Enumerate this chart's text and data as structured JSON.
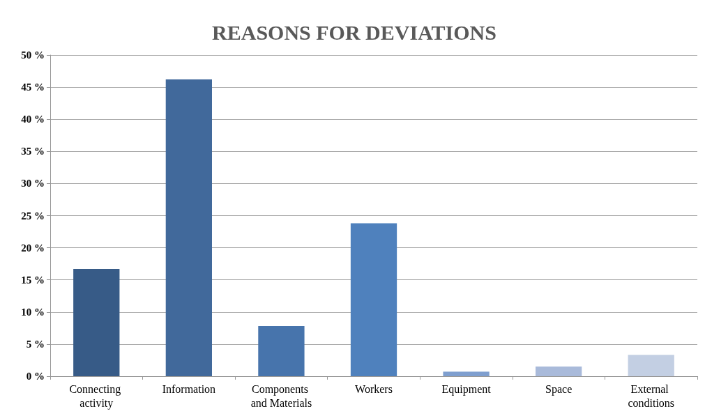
{
  "chart_data": {
    "type": "bar",
    "title": "REASONS FOR DEVIATIONS",
    "categories": [
      "Connecting activity",
      "Information",
      "Components and Materials",
      "Workers",
      "Equipment",
      "Space",
      "External conditions"
    ],
    "values": [
      16.7,
      46.2,
      7.8,
      23.8,
      0.7,
      1.5,
      3.3
    ],
    "colors": [
      "#375b87",
      "#41699b",
      "#4774ac",
      "#4f81bd",
      "#7f9fcf",
      "#a9bada",
      "#c3cfe3"
    ],
    "ylim": [
      0,
      50
    ],
    "yticks": [
      {
        "value": 0,
        "label": "0 %"
      },
      {
        "value": 5,
        "label": "5 %"
      },
      {
        "value": 10,
        "label": "10 %"
      },
      {
        "value": 15,
        "label": "15 %"
      },
      {
        "value": 20,
        "label": "20 %"
      },
      {
        "value": 25,
        "label": "25 %"
      },
      {
        "value": 30,
        "label": "30 %"
      },
      {
        "value": 35,
        "label": "35 %"
      },
      {
        "value": 40,
        "label": "40 %"
      },
      {
        "value": 45,
        "label": "45 %"
      },
      {
        "value": 50,
        "label": "50 %"
      }
    ],
    "grid": "y"
  }
}
